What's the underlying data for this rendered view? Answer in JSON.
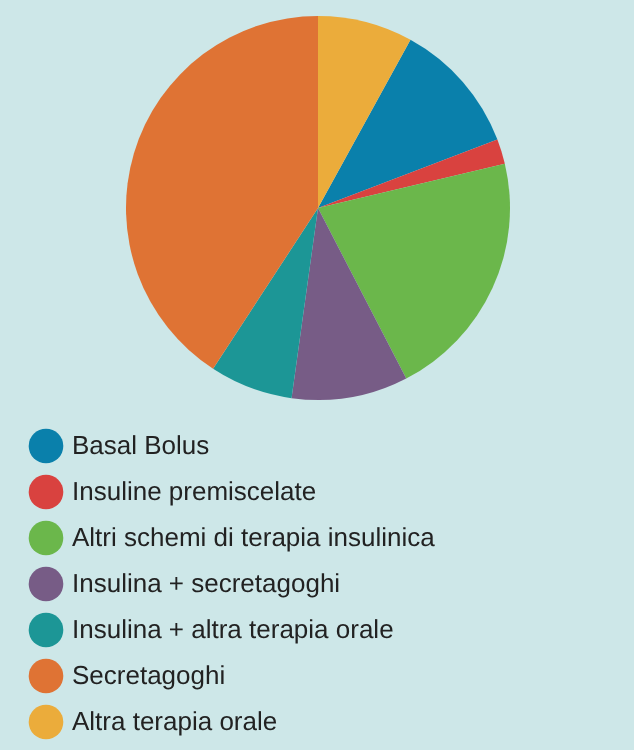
{
  "chart_data": {
    "type": "pie",
    "categories": [
      "Basal Bolus",
      "Insuline premiscelate",
      "Altri schemi di terapia insulinica",
      "Insulina + secretagoghi",
      "Insulina + altra terapia orale",
      "Secretagoghi",
      "Altra terapia orale"
    ],
    "values": [
      11.2,
      2.1,
      21.1,
      9.8,
      7.0,
      40.8,
      8.0
    ],
    "colors": [
      "#0a80ab",
      "#d9423f",
      "#6bb74b",
      "#775c86",
      "#1c9696",
      "#df7334",
      "#ebac3b"
    ],
    "legend": "bottom"
  }
}
